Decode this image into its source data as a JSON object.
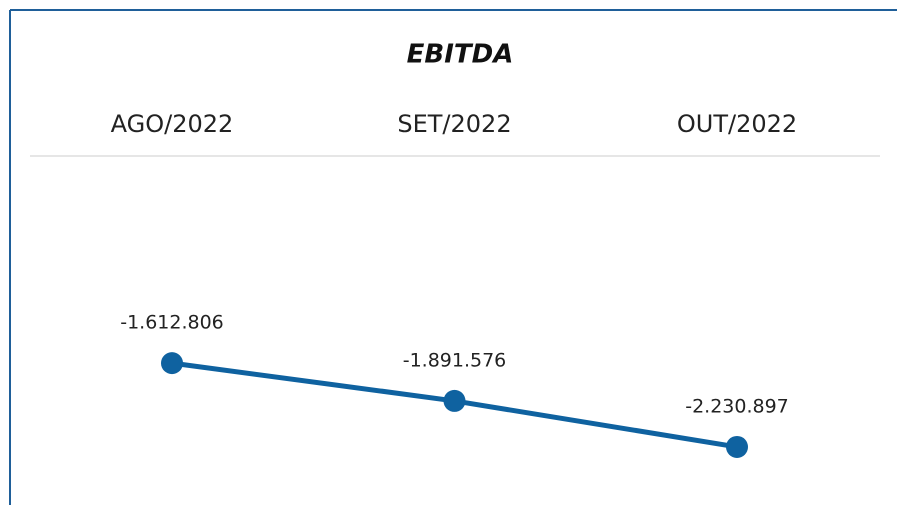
{
  "chart_data": {
    "type": "line",
    "title": "EBITDA",
    "categories": [
      "AGO/2022",
      "SET/2022",
      "OUT/2022"
    ],
    "series": [
      {
        "color": "#0f62a0",
        "values": [
          -1612806,
          -1891576,
          -2230897
        ],
        "value_labels": [
          "-1.612.806",
          "-1.891.576",
          "-2.230.897"
        ]
      }
    ],
    "ylim": [
      -2600000,
      -1000000
    ]
  }
}
